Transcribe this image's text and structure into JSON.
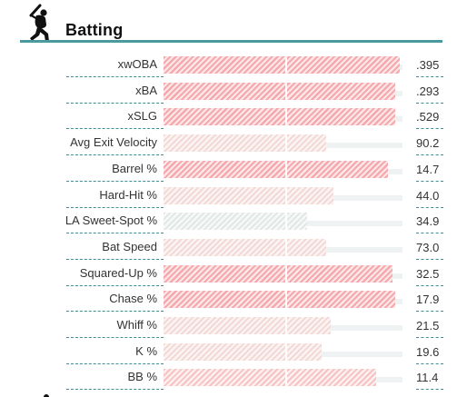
{
  "section": {
    "title": "Batting",
    "icon": "batter-icon"
  },
  "metrics": [
    {
      "label": "xwOBA",
      "value": ".395",
      "percentile": 99,
      "tone": "strong"
    },
    {
      "label": "xBA",
      "value": ".293",
      "percentile": 97,
      "tone": "strong"
    },
    {
      "label": "xSLG",
      "value": ".529",
      "percentile": 97,
      "tone": "strong"
    },
    {
      "label": "Avg Exit Velocity",
      "value": "90.2",
      "percentile": 68,
      "tone": "light"
    },
    {
      "label": "Barrel %",
      "value": "14.7",
      "percentile": 94,
      "tone": "strong"
    },
    {
      "label": "Hard-Hit %",
      "value": "44.0",
      "percentile": 71,
      "tone": "light"
    },
    {
      "label": "LA Sweet-Spot %",
      "value": "34.9",
      "percentile": 60,
      "tone": "neutral"
    },
    {
      "label": "Bat Speed",
      "value": "73.0",
      "percentile": 68,
      "tone": "light"
    },
    {
      "label": "Squared-Up %",
      "value": "32.5",
      "percentile": 96,
      "tone": "strong"
    },
    {
      "label": "Chase %",
      "value": "17.9",
      "percentile": 97,
      "tone": "strong"
    },
    {
      "label": "Whiff %",
      "value": "21.5",
      "percentile": 70,
      "tone": "light"
    },
    {
      "label": "K %",
      "value": "19.6",
      "percentile": 66,
      "tone": "light"
    },
    {
      "label": "BB %",
      "value": "11.4",
      "percentile": 89,
      "tone": "medium"
    }
  ],
  "colors": {
    "accent_rule": "#4a9aa0",
    "dash": "#3d8e95",
    "strong": "#f5a9ac",
    "light": "#f1d6d2",
    "neutral": "#dfe6e4"
  }
}
